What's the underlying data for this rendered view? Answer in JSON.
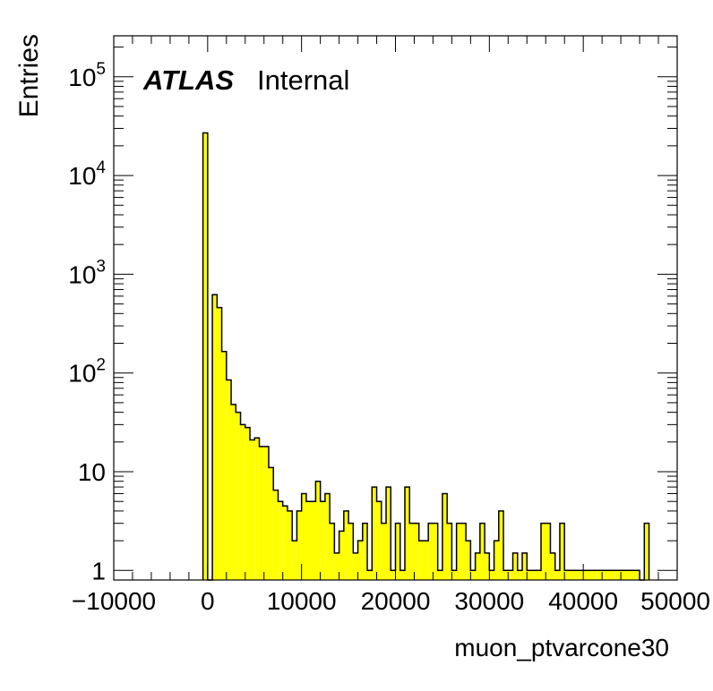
{
  "chart_data": {
    "type": "bar",
    "title": "",
    "xlabel": "muon_ptvarcone30",
    "ylabel": "Entries",
    "label_atlas": "ATLAS",
    "label_status": "Internal",
    "y_scale": "log",
    "xlim": [
      -10000,
      50000
    ],
    "ylim": [
      0.8,
      260000
    ],
    "x_ticks": [
      {
        "value": -10000,
        "label": "−10000"
      },
      {
        "value": 0,
        "label": "0"
      },
      {
        "value": 10000,
        "label": "10000"
      },
      {
        "value": 20000,
        "label": "20000"
      },
      {
        "value": 30000,
        "label": "30000"
      },
      {
        "value": 40000,
        "label": "40000"
      },
      {
        "value": 50000,
        "label": "50000"
      }
    ],
    "y_ticks": [
      {
        "value": 1,
        "base": "1",
        "exp": ""
      },
      {
        "value": 10,
        "base": "10",
        "exp": ""
      },
      {
        "value": 100,
        "base": "10",
        "exp": "2"
      },
      {
        "value": 1000,
        "base": "10",
        "exp": "3"
      },
      {
        "value": 10000,
        "base": "10",
        "exp": "4"
      },
      {
        "value": 100000,
        "base": "10",
        "exp": "5"
      }
    ],
    "bin_width": 500,
    "bins_start": -500,
    "values": [
      27000,
      0,
      620,
      460,
      165,
      85,
      48,
      40,
      30,
      28,
      21,
      22,
      18,
      18,
      11,
      6.5,
      5,
      4.5,
      4,
      2,
      4,
      6,
      5,
      5,
      8,
      5,
      6,
      3,
      1.5,
      2.5,
      4,
      3,
      1.5,
      2,
      3,
      1,
      7,
      5,
      3,
      7,
      1,
      3,
      1,
      7,
      3,
      3,
      2,
      2,
      3,
      3,
      1,
      6,
      3,
      1,
      3,
      3,
      2,
      1,
      1.5,
      3,
      1.5,
      1,
      2,
      4,
      1,
      1,
      1.5,
      1,
      1.5,
      1,
      1,
      1,
      3,
      3,
      1.5,
      1,
      3,
      1,
      1,
      1,
      1,
      1,
      1,
      1,
      1,
      1,
      1,
      1,
      1,
      1,
      1,
      1,
      1,
      0,
      3
    ],
    "fill_color": "#ffff00",
    "edge_color": "#000000",
    "grid": false,
    "legend": "none"
  }
}
